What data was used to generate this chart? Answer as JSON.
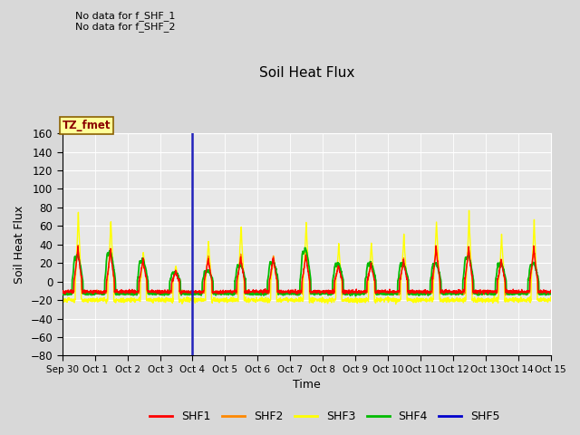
{
  "title": "Soil Heat Flux",
  "xlabel": "Time",
  "ylabel": "Soil Heat Flux",
  "ylim": [
    -80,
    160
  ],
  "yticks": [
    -80,
    -60,
    -40,
    -20,
    0,
    20,
    40,
    60,
    80,
    100,
    120,
    140,
    160
  ],
  "background_color": "#d8d8d8",
  "plot_bg_color": "#e8e8e8",
  "text_no_data_1": "No data for f_SHF_1",
  "text_no_data_2": "No data for f_SHF_2",
  "tz_label": "TZ_fmet",
  "tz_label_color": "#8B0000",
  "tz_box_color": "#FFFF99",
  "tz_box_edge": "#8B6000",
  "vline_x": 4.0,
  "vline_color": "#2222BB",
  "series_colors": {
    "SHF1": "#FF0000",
    "SHF2": "#FF8800",
    "SHF3": "#FFFF00",
    "SHF4": "#00BB00",
    "SHF5": "#0000CC"
  },
  "legend_entries": [
    "SHF1",
    "SHF2",
    "SHF3",
    "SHF4",
    "SHF5"
  ],
  "x_tick_labels": [
    "Sep 30",
    "Oct 1",
    "Oct 2",
    "Oct 3",
    "Oct 4",
    "Oct 5",
    "Oct 6",
    "Oct 7",
    "Oct 8",
    "Oct 9",
    "Oct 10",
    "Oct 11",
    "Oct 12",
    "Oct 13",
    "Oct 14",
    "Oct 15"
  ],
  "x_tick_positions": [
    0,
    1,
    2,
    3,
    4,
    5,
    6,
    7,
    8,
    9,
    10,
    11,
    12,
    13,
    14,
    15
  ]
}
